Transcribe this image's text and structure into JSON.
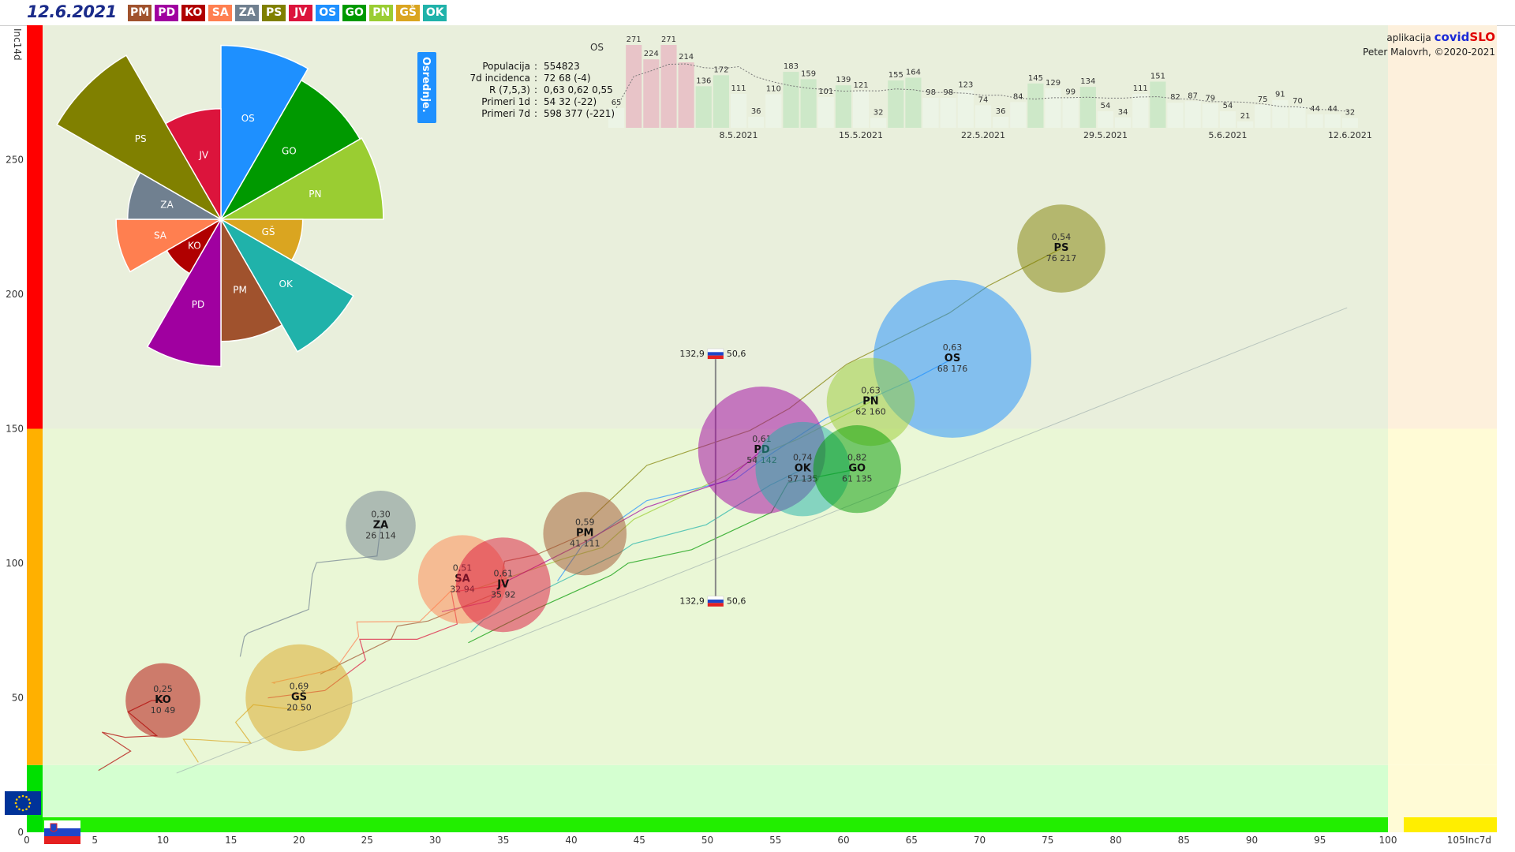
{
  "header": {
    "date": "12.6.2021"
  },
  "regions": [
    {
      "code": "PM",
      "color": "#a0522d"
    },
    {
      "code": "PD",
      "color": "#a000a0"
    },
    {
      "code": "KO",
      "color": "#b00000"
    },
    {
      "code": "SA",
      "color": "#ff7f50"
    },
    {
      "code": "ZA",
      "color": "#708090"
    },
    {
      "code": "PS",
      "color": "#808000"
    },
    {
      "code": "JV",
      "color": "#dc143c"
    },
    {
      "code": "OS",
      "color": "#1e90ff"
    },
    {
      "code": "GO",
      "color": "#009900"
    },
    {
      "code": "PN",
      "color": "#9acd32"
    },
    {
      "code": "GŠ",
      "color": "#daa520"
    },
    {
      "code": "OK",
      "color": "#20b2aa"
    }
  ],
  "credits": {
    "app_prefix": "aplikacija",
    "app_name_a": "covid",
    "app_name_b": "SLO",
    "author": "Peter Malovrh, ©2020-2021"
  },
  "info_panel": {
    "tab_label": "Osrednje.",
    "rows": [
      {
        "label": "Populacija",
        "value": "554823"
      },
      {
        "label": "7d incidenca",
        "value": "72 68 (-4)"
      },
      {
        "label": "R (7,5,3)",
        "value": "0,63 0,62 0,55"
      },
      {
        "label": "Primeri 1d",
        "value": "54 32 (-22)"
      },
      {
        "label": "Primeri 7d",
        "value": "598 377 (-221)"
      }
    ]
  },
  "slovenia_marker": {
    "top_label_left": "132,9",
    "top_label_right": "50,6",
    "bottom_label_left": "132,9",
    "bottom_label_right": "50,6"
  },
  "chart_data": [
    {
      "type": "scatter",
      "title": "",
      "xlabel": "Inc7d",
      "ylabel": "Inc14d",
      "xlim": [
        0,
        108
      ],
      "ylim": [
        0,
        300
      ],
      "xticks": [
        0,
        5,
        10,
        15,
        20,
        25,
        30,
        35,
        40,
        45,
        50,
        55,
        60,
        65,
        70,
        75,
        80,
        85,
        90,
        95,
        100,
        105
      ],
      "yticks": [
        0,
        50,
        100,
        150,
        200,
        250
      ],
      "background_bands_y": [
        {
          "from": 0,
          "to": 25,
          "color": "#d4ffd0"
        },
        {
          "from": 25,
          "to": 150,
          "color": "#eaf7d6"
        },
        {
          "from": 150,
          "to": 300,
          "color": "#e9efdc"
        }
      ],
      "bubbles": [
        {
          "code": "OS",
          "x": 68,
          "y": 176,
          "r_label": "0,63",
          "values_label": "68 176",
          "radius_data": 0.63,
          "color": "#1e90ff"
        },
        {
          "code": "PS",
          "x": 76,
          "y": 217,
          "r_label": "0,54",
          "values_label": "76 217",
          "radius_data": 0.54,
          "color": "#808000"
        },
        {
          "code": "PN",
          "x": 62,
          "y": 160,
          "r_label": "0,63",
          "values_label": "62 160",
          "radius_data": 0.63,
          "color": "#9acd32"
        },
        {
          "code": "PD",
          "x": 54,
          "y": 142,
          "r_label": "0,61",
          "values_label": "54 142",
          "radius_data": 0.61,
          "color": "#a000a0"
        },
        {
          "code": "OK",
          "x": 57,
          "y": 135,
          "r_label": "0,74",
          "values_label": "57 135",
          "radius_data": 0.74,
          "color": "#20b2aa"
        },
        {
          "code": "GO",
          "x": 61,
          "y": 135,
          "r_label": "0,82",
          "values_label": "61 135",
          "radius_data": 0.82,
          "color": "#009900"
        },
        {
          "code": "PM",
          "x": 41,
          "y": 111,
          "r_label": "0,59",
          "values_label": "41 111",
          "radius_data": 0.59,
          "color": "#a0522d"
        },
        {
          "code": "ZA",
          "x": 26,
          "y": 114,
          "r_label": "0,30",
          "values_label": "26 114",
          "radius_data": 0.3,
          "color": "#708090"
        },
        {
          "code": "SA",
          "x": 32,
          "y": 94,
          "r_label": "0,51",
          "values_label": "32 94",
          "radius_data": 0.51,
          "color": "#ff7f50"
        },
        {
          "code": "JV",
          "x": 35,
          "y": 92,
          "r_label": "0,61",
          "values_label": "35 92",
          "radius_data": 0.61,
          "color": "#dc143c"
        },
        {
          "code": "KO",
          "x": 10,
          "y": 49,
          "r_label": "0,25",
          "values_label": "10 49",
          "radius_data": 0.25,
          "color": "#b00000"
        },
        {
          "code": "GŠ",
          "x": 20,
          "y": 50,
          "r_label": "0,69",
          "values_label": "20 50",
          "radius_data": 0.69,
          "color": "#daa520"
        }
      ]
    },
    {
      "type": "bar",
      "title": "",
      "series_label": "OS",
      "values": [
        65,
        271,
        224,
        271,
        214,
        136,
        172,
        111,
        36,
        110,
        183,
        159,
        101,
        139,
        121,
        32,
        155,
        164,
        98,
        98,
        123,
        74,
        36,
        84,
        145,
        129,
        99,
        134,
        54,
        34,
        111,
        151,
        82,
        87,
        79,
        54,
        21,
        75,
        91,
        70,
        44,
        44,
        32
      ],
      "date_ticks": [
        "8.5.2021",
        "15.5.2021",
        "22.5.2021",
        "29.5.2021",
        "5.6.2021",
        "12.6.2021"
      ]
    },
    {
      "type": "pie",
      "title": "",
      "slices": [
        {
          "code": "OS",
          "value": 68
        },
        {
          "code": "GO",
          "value": 61
        },
        {
          "code": "PN",
          "value": 62
        },
        {
          "code": "GŠ",
          "value": 20
        },
        {
          "code": "OK",
          "value": 57
        },
        {
          "code": "PM",
          "value": 41
        },
        {
          "code": "PD",
          "value": 54
        },
        {
          "code": "KO",
          "value": 10
        },
        {
          "code": "SA",
          "value": 32
        },
        {
          "code": "ZA",
          "value": 26
        },
        {
          "code": "PS",
          "value": 76
        },
        {
          "code": "JV",
          "value": 35
        }
      ]
    }
  ]
}
